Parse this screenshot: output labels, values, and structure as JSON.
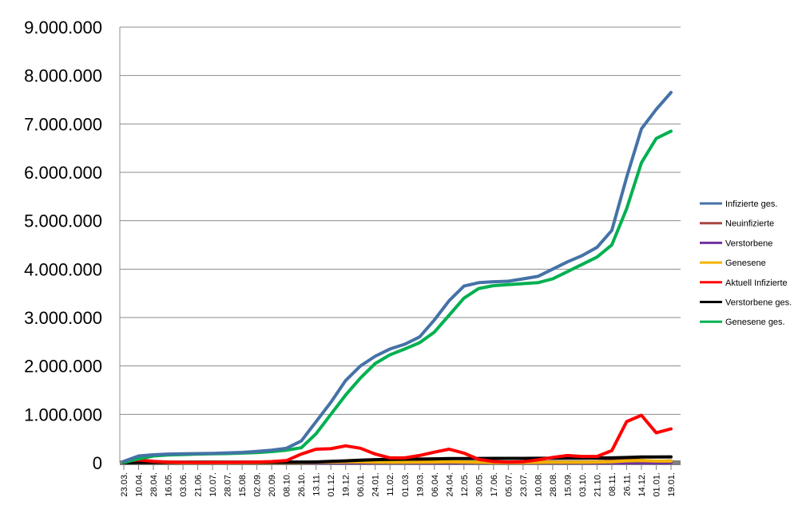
{
  "chart_data": {
    "type": "line",
    "title": "",
    "xlabel": "",
    "ylabel": "",
    "ylim": [
      0,
      9000000
    ],
    "yticks": [
      "0",
      "1.000.000",
      "2.000.000",
      "3.000.000",
      "4.000.000",
      "5.000.000",
      "6.000.000",
      "7.000.000",
      "8.000.000",
      "9.000.000"
    ],
    "grid": "horizontal",
    "legend_position": "right",
    "categories": [
      "23.03.",
      "10.04.",
      "28.04.",
      "16.05.",
      "03.06.",
      "21.06.",
      "10.07.",
      "28.07.",
      "15.08.",
      "02.09.",
      "20.09.",
      "08.10.",
      "26.10.",
      "13.11.",
      "01.12.",
      "19.12.",
      "06.01.",
      "24.01.",
      "11.02.",
      "01.03.",
      "19.03.",
      "06.04.",
      "24.04.",
      "12.05.",
      "30.05.",
      "17.06.",
      "05.07.",
      "23.07.",
      "10.08.",
      "28.08.",
      "15.09.",
      "03.10.",
      "21.10.",
      "08.11.",
      "26.11.",
      "14.12.",
      "01.01.",
      "19.01."
    ],
    "series": [
      {
        "name": "Infizierte ges.",
        "color": "#4572A7",
        "values": [
          30000,
          140000,
          165000,
          180000,
          185000,
          190000,
          195000,
          205000,
          215000,
          235000,
          260000,
          300000,
          450000,
          850000,
          1250000,
          1700000,
          2000000,
          2200000,
          2350000,
          2450000,
          2600000,
          2950000,
          3350000,
          3650000,
          3720000,
          3740000,
          3750000,
          3800000,
          3850000,
          4000000,
          4150000,
          4280000,
          4450000,
          4800000,
          5900000,
          6900000,
          7300000,
          7650000
        ]
      },
      {
        "name": "Neuinfizierte",
        "color": "#AA4643",
        "values": [
          5000,
          3000,
          1000,
          1000,
          1000,
          1000,
          1000,
          1000,
          2000,
          2000,
          3000,
          5000,
          10000,
          15000,
          15000,
          20000,
          15000,
          10000,
          8000,
          10000,
          15000,
          20000,
          20000,
          12000,
          8000,
          5000,
          5000,
          6000,
          10000,
          12000,
          10000,
          12000,
          20000,
          40000,
          60000,
          50000,
          30000,
          40000
        ]
      },
      {
        "name": "Verstorbene",
        "color": "#7030A0",
        "values": [
          200,
          200,
          100,
          50,
          30,
          20,
          10,
          10,
          10,
          10,
          20,
          40,
          150,
          300,
          400,
          600,
          800,
          600,
          400,
          250,
          200,
          250,
          250,
          150,
          100,
          80,
          60,
          60,
          60,
          80,
          100,
          100,
          120,
          200,
          300,
          350,
          300,
          300
        ]
      },
      {
        "name": "Genesene",
        "color": "#F2B300",
        "values": [
          1000,
          3000,
          3000,
          2000,
          1000,
          1000,
          1000,
          1000,
          1500,
          2000,
          2000,
          3000,
          5000,
          12000,
          15000,
          18000,
          18000,
          12000,
          10000,
          10000,
          12000,
          15000,
          18000,
          15000,
          10000,
          5000,
          5000,
          5000,
          8000,
          10000,
          10000,
          10000,
          15000,
          20000,
          40000,
          45000,
          35000,
          35000
        ]
      },
      {
        "name": "Aktuell Infizierte",
        "color": "#FF0000",
        "values": [
          25000,
          60000,
          30000,
          15000,
          8000,
          6000,
          6000,
          8000,
          10000,
          15000,
          25000,
          45000,
          180000,
          280000,
          290000,
          350000,
          300000,
          180000,
          100000,
          100000,
          150000,
          220000,
          280000,
          200000,
          70000,
          25000,
          15000,
          20000,
          60000,
          110000,
          150000,
          130000,
          130000,
          250000,
          850000,
          980000,
          620000,
          700000
        ]
      },
      {
        "name": "Verstorbene ges.",
        "color": "#000000",
        "values": [
          300,
          6000,
          7000,
          8500,
          9000,
          9100,
          9200,
          9300,
          9400,
          9500,
          9700,
          10200,
          12000,
          17000,
          28000,
          40000,
          55000,
          65000,
          70000,
          74000,
          76000,
          80000,
          85000,
          88000,
          89000,
          90000,
          90500,
          91000,
          91500,
          93000,
          94500,
          96000,
          97000,
          100000,
          108000,
          118000,
          120000,
          122000
        ]
      },
      {
        "name": "Genesene ges.",
        "color": "#00B050",
        "values": [
          5000,
          80000,
          140000,
          160000,
          170000,
          180000,
          185000,
          190000,
          200000,
          210000,
          230000,
          260000,
          310000,
          600000,
          1000000,
          1400000,
          1750000,
          2050000,
          2230000,
          2350000,
          2480000,
          2700000,
          3050000,
          3400000,
          3600000,
          3660000,
          3680000,
          3700000,
          3720000,
          3800000,
          3950000,
          4100000,
          4250000,
          4500000,
          5250000,
          6200000,
          6700000,
          6850000
        ]
      }
    ]
  }
}
